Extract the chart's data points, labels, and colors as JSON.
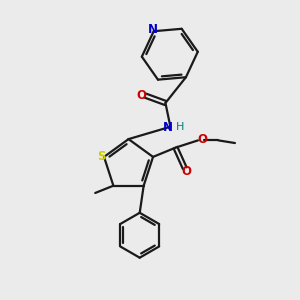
{
  "bg_color": "#ebebeb",
  "bond_color": "#1a1a1a",
  "N_color": "#0000cc",
  "O_color": "#cc0000",
  "S_color": "#cccc00",
  "H_color": "#008080",
  "lw": 1.6,
  "figsize": [
    3.0,
    3.0
  ],
  "dpi": 100,
  "xlim": [
    1.0,
    9.0
  ],
  "ylim": [
    0.5,
    9.5
  ]
}
